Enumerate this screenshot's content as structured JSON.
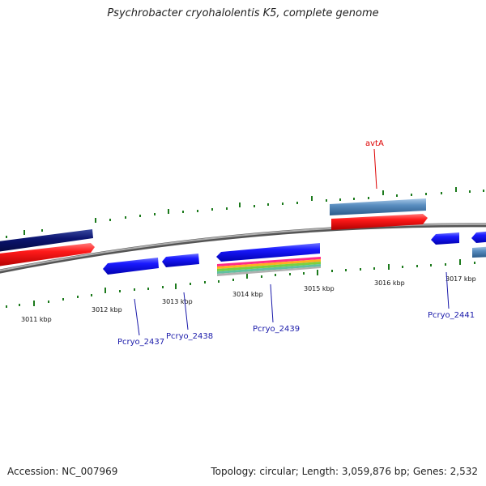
{
  "title": "Psychrobacter cryohalolentis K5, complete genome",
  "footer": {
    "accession": "Accession: NC_007969",
    "topology": "Topology: circular; Length: 3,059,876 bp; Genes: 2,532"
  },
  "scale_labels": [
    "3011 kbp",
    "3012 kbp",
    "3013 kbp",
    "3014 kbp",
    "3015 kbp",
    "3016 kbp",
    "3017 kbp"
  ],
  "gene_labels": [
    {
      "name": "avtA",
      "color": "#dd0000"
    },
    {
      "name": "Pcryo_2437",
      "color": "#1a1aaa"
    },
    {
      "name": "Pcryo_2438",
      "color": "#1a1aaa"
    },
    {
      "name": "Pcryo_2439",
      "color": "#1a1aaa"
    },
    {
      "name": "Pcryo_2441",
      "color": "#1a1aaa"
    }
  ],
  "colors": {
    "backbone": "#8a8a8a",
    "tick": "#1c7a1c",
    "forward_gene": "#1111ee",
    "navy_gene": "#0b1470",
    "red_gene": "#ee1111",
    "steel_gene": "#5a8ec0",
    "label_blue": "#1a1aaa",
    "label_red": "#dd0000"
  }
}
